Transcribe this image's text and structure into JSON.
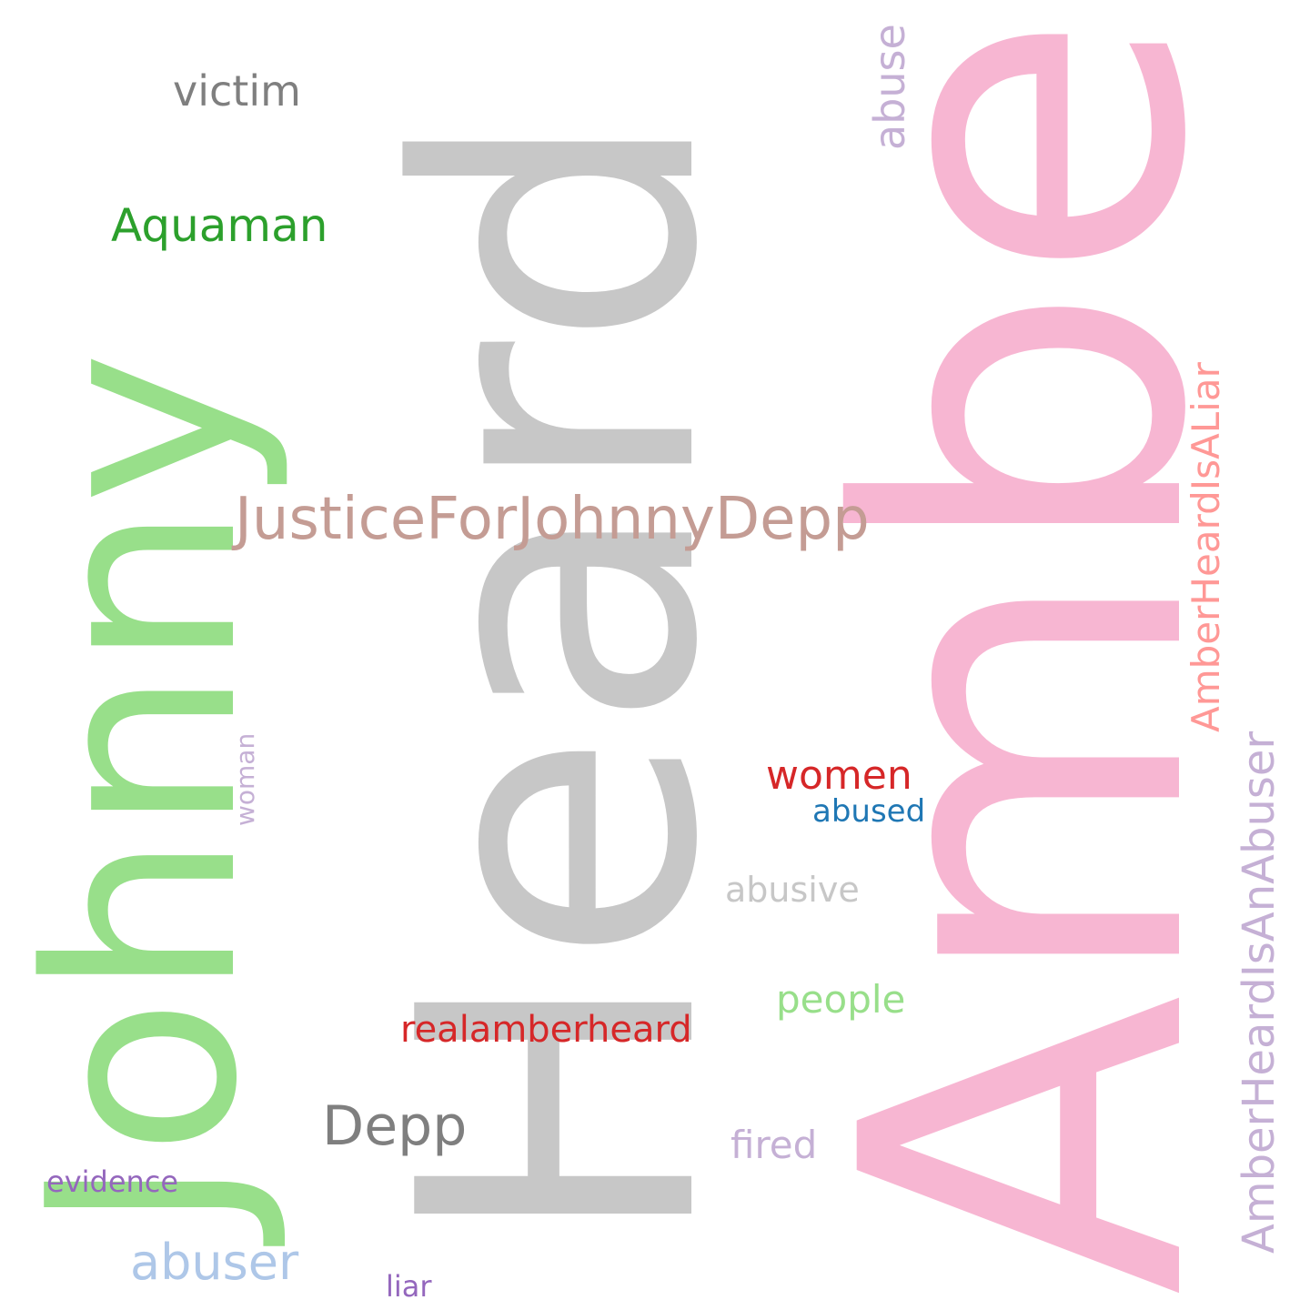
{
  "words": [
    {
      "key": "amber",
      "text": "Amber",
      "color": "#f7b6d2",
      "orientation": "vertical"
    },
    {
      "key": "heard",
      "text": "Heard",
      "color": "#c7c7c7",
      "orientation": "vertical"
    },
    {
      "key": "johnny",
      "text": "Johnny",
      "color": "#98df8a",
      "orientation": "vertical"
    },
    {
      "key": "justice",
      "text": "JusticeForJohnnyDepp",
      "color": "#c49c94",
      "orientation": "horizontal"
    },
    {
      "key": "victim",
      "text": "victim",
      "color": "#7f7f7f",
      "orientation": "horizontal"
    },
    {
      "key": "aquaman",
      "text": "Aquaman",
      "color": "#2ca02c",
      "orientation": "horizontal"
    },
    {
      "key": "abuse",
      "text": "abuse",
      "color": "#c5b0d5",
      "orientation": "vertical"
    },
    {
      "key": "liar",
      "text": "AmberHeardIsALiar",
      "color": "#ff9896",
      "orientation": "vertical"
    },
    {
      "key": "anabuser",
      "text": "AmberHeardIsAnAbuser",
      "color": "#c5b0d5",
      "orientation": "vertical"
    },
    {
      "key": "women",
      "text": "women",
      "color": "#d62728",
      "orientation": "horizontal"
    },
    {
      "key": "abused",
      "text": "abused",
      "color": "#1f77b4",
      "orientation": "horizontal"
    },
    {
      "key": "abusive",
      "text": "abusive",
      "color": "#c7c7c7",
      "orientation": "horizontal"
    },
    {
      "key": "woman",
      "text": "woman",
      "color": "#c5b0d5",
      "orientation": "vertical"
    },
    {
      "key": "people",
      "text": "people",
      "color": "#98df8a",
      "orientation": "horizontal"
    },
    {
      "key": "realamberheard",
      "text": "realamberheard",
      "color": "#d62728",
      "orientation": "horizontal"
    },
    {
      "key": "depp",
      "text": "Depp",
      "color": "#7f7f7f",
      "orientation": "horizontal"
    },
    {
      "key": "fired",
      "text": "fired",
      "color": "#c5b0d5",
      "orientation": "horizontal"
    },
    {
      "key": "evidence",
      "text": "evidence",
      "color": "#9467bd",
      "orientation": "horizontal"
    },
    {
      "key": "abuser",
      "text": "abuser",
      "color": "#aec7e8",
      "orientation": "horizontal"
    },
    {
      "key": "liar_small",
      "text": "liar",
      "color": "#9467bd",
      "orientation": "horizontal"
    }
  ]
}
